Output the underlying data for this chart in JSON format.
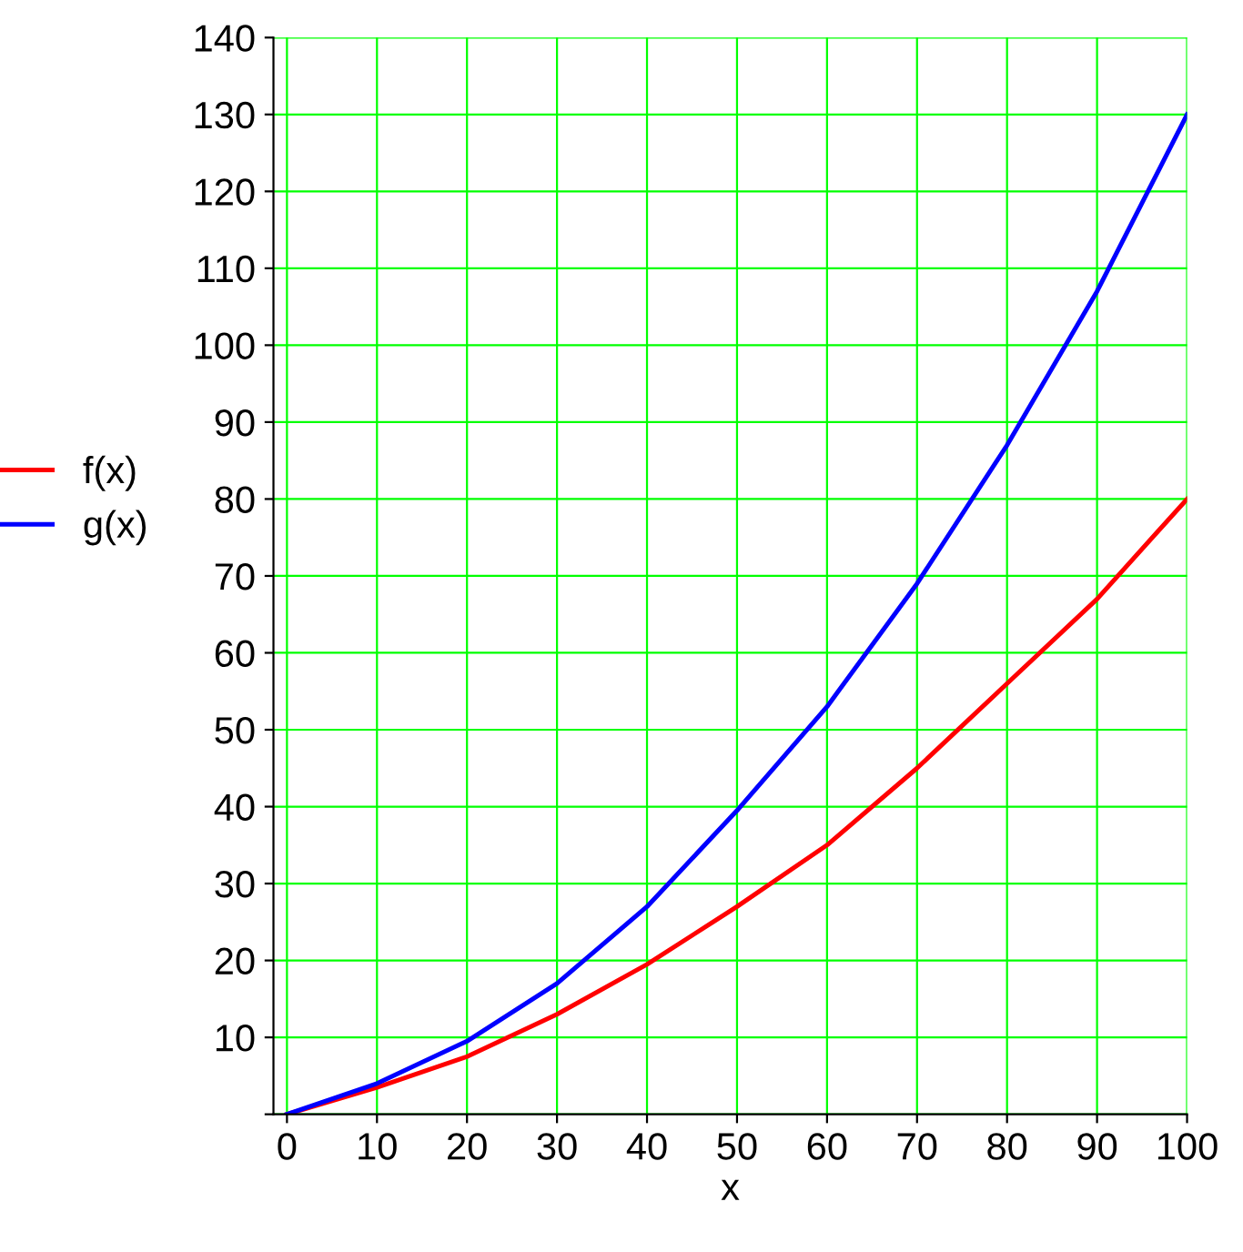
{
  "chart_data": {
    "type": "line",
    "xlabel": "x",
    "legend": "left",
    "grid": true,
    "marker": "none",
    "line_style": "solid",
    "x": [
      0,
      10,
      20,
      30,
      40,
      50,
      60,
      70,
      80,
      90,
      100
    ],
    "series": [
      {
        "name": "f(x)",
        "color": "#ff0000",
        "values": [
          0,
          3.5,
          7.5,
          13,
          19.5,
          27,
          35,
          45,
          56,
          67,
          80
        ]
      },
      {
        "name": "g(x)",
        "color": "#0000ff",
        "values": [
          0,
          4,
          9.5,
          17,
          27,
          39.5,
          53,
          69,
          87,
          107,
          130
        ]
      }
    ],
    "xlim": [
      -1.5,
      100
    ],
    "ylim": [
      0,
      140
    ],
    "xticks": [
      0,
      10,
      20,
      30,
      40,
      50,
      60,
      70,
      80,
      90,
      100
    ],
    "yticks": [
      {
        "value": 0,
        "label": null
      },
      10,
      20,
      30,
      40,
      50,
      60,
      70,
      80,
      90,
      100,
      110,
      120,
      130,
      140
    ]
  }
}
